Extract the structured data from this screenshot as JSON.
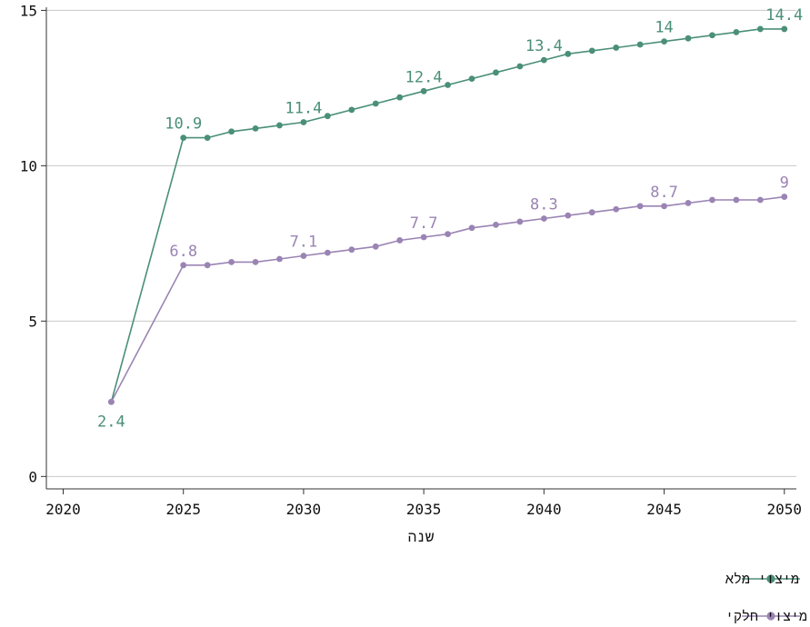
{
  "chart_data": {
    "type": "line",
    "xlabel": "שנה",
    "ylabel": "",
    "xlim": [
      2019.3,
      2050.5
    ],
    "ylim": [
      -0.4,
      15.1
    ],
    "xticks": [
      2020,
      2025,
      2030,
      2035,
      2040,
      2045,
      2050
    ],
    "yticks": [
      0,
      5,
      10,
      15
    ],
    "grid": "horizontal",
    "legend_position": "bottom-right",
    "x": [
      2022,
      2025,
      2026,
      2027,
      2028,
      2029,
      2030,
      2031,
      2032,
      2033,
      2034,
      2035,
      2036,
      2037,
      2038,
      2039,
      2040,
      2041,
      2042,
      2043,
      2044,
      2045,
      2046,
      2047,
      2048,
      2049,
      2050
    ],
    "series": [
      {
        "name": "מיצוי מלא",
        "color": "#4a8f78",
        "values": [
          2.4,
          10.9,
          10.9,
          11.1,
          11.2,
          11.3,
          11.4,
          11.6,
          11.8,
          12.0,
          12.2,
          12.4,
          12.6,
          12.8,
          13.0,
          13.2,
          13.4,
          13.6,
          13.7,
          13.8,
          13.9,
          14.0,
          14.1,
          14.2,
          14.3,
          14.4,
          14.4
        ],
        "labels": [
          {
            "x": 2022,
            "text": "2.4",
            "pos": "below"
          },
          {
            "x": 2025,
            "text": "10.9",
            "pos": "above"
          },
          {
            "x": 2030,
            "text": "11.4",
            "pos": "above"
          },
          {
            "x": 2035,
            "text": "12.4",
            "pos": "above"
          },
          {
            "x": 2040,
            "text": "13.4",
            "pos": "above"
          },
          {
            "x": 2045,
            "text": "14",
            "pos": "above"
          },
          {
            "x": 2050,
            "text": "14.4",
            "pos": "above"
          }
        ]
      },
      {
        "name": "מיצוי חלקי",
        "color": "#9a84b4",
        "values": [
          2.4,
          6.8,
          6.8,
          6.9,
          6.9,
          7.0,
          7.1,
          7.2,
          7.3,
          7.4,
          7.6,
          7.7,
          7.8,
          8.0,
          8.1,
          8.2,
          8.3,
          8.4,
          8.5,
          8.6,
          8.7,
          8.7,
          8.8,
          8.9,
          8.9,
          8.9,
          9.0
        ],
        "labels": [
          {
            "x": 2025,
            "text": "6.8",
            "pos": "above"
          },
          {
            "x": 2030,
            "text": "7.1",
            "pos": "above"
          },
          {
            "x": 2035,
            "text": "7.7",
            "pos": "above"
          },
          {
            "x": 2040,
            "text": "8.3",
            "pos": "above"
          },
          {
            "x": 2045,
            "text": "8.7",
            "pos": "above"
          },
          {
            "x": 2050,
            "text": "9",
            "pos": "above"
          }
        ]
      }
    ]
  }
}
